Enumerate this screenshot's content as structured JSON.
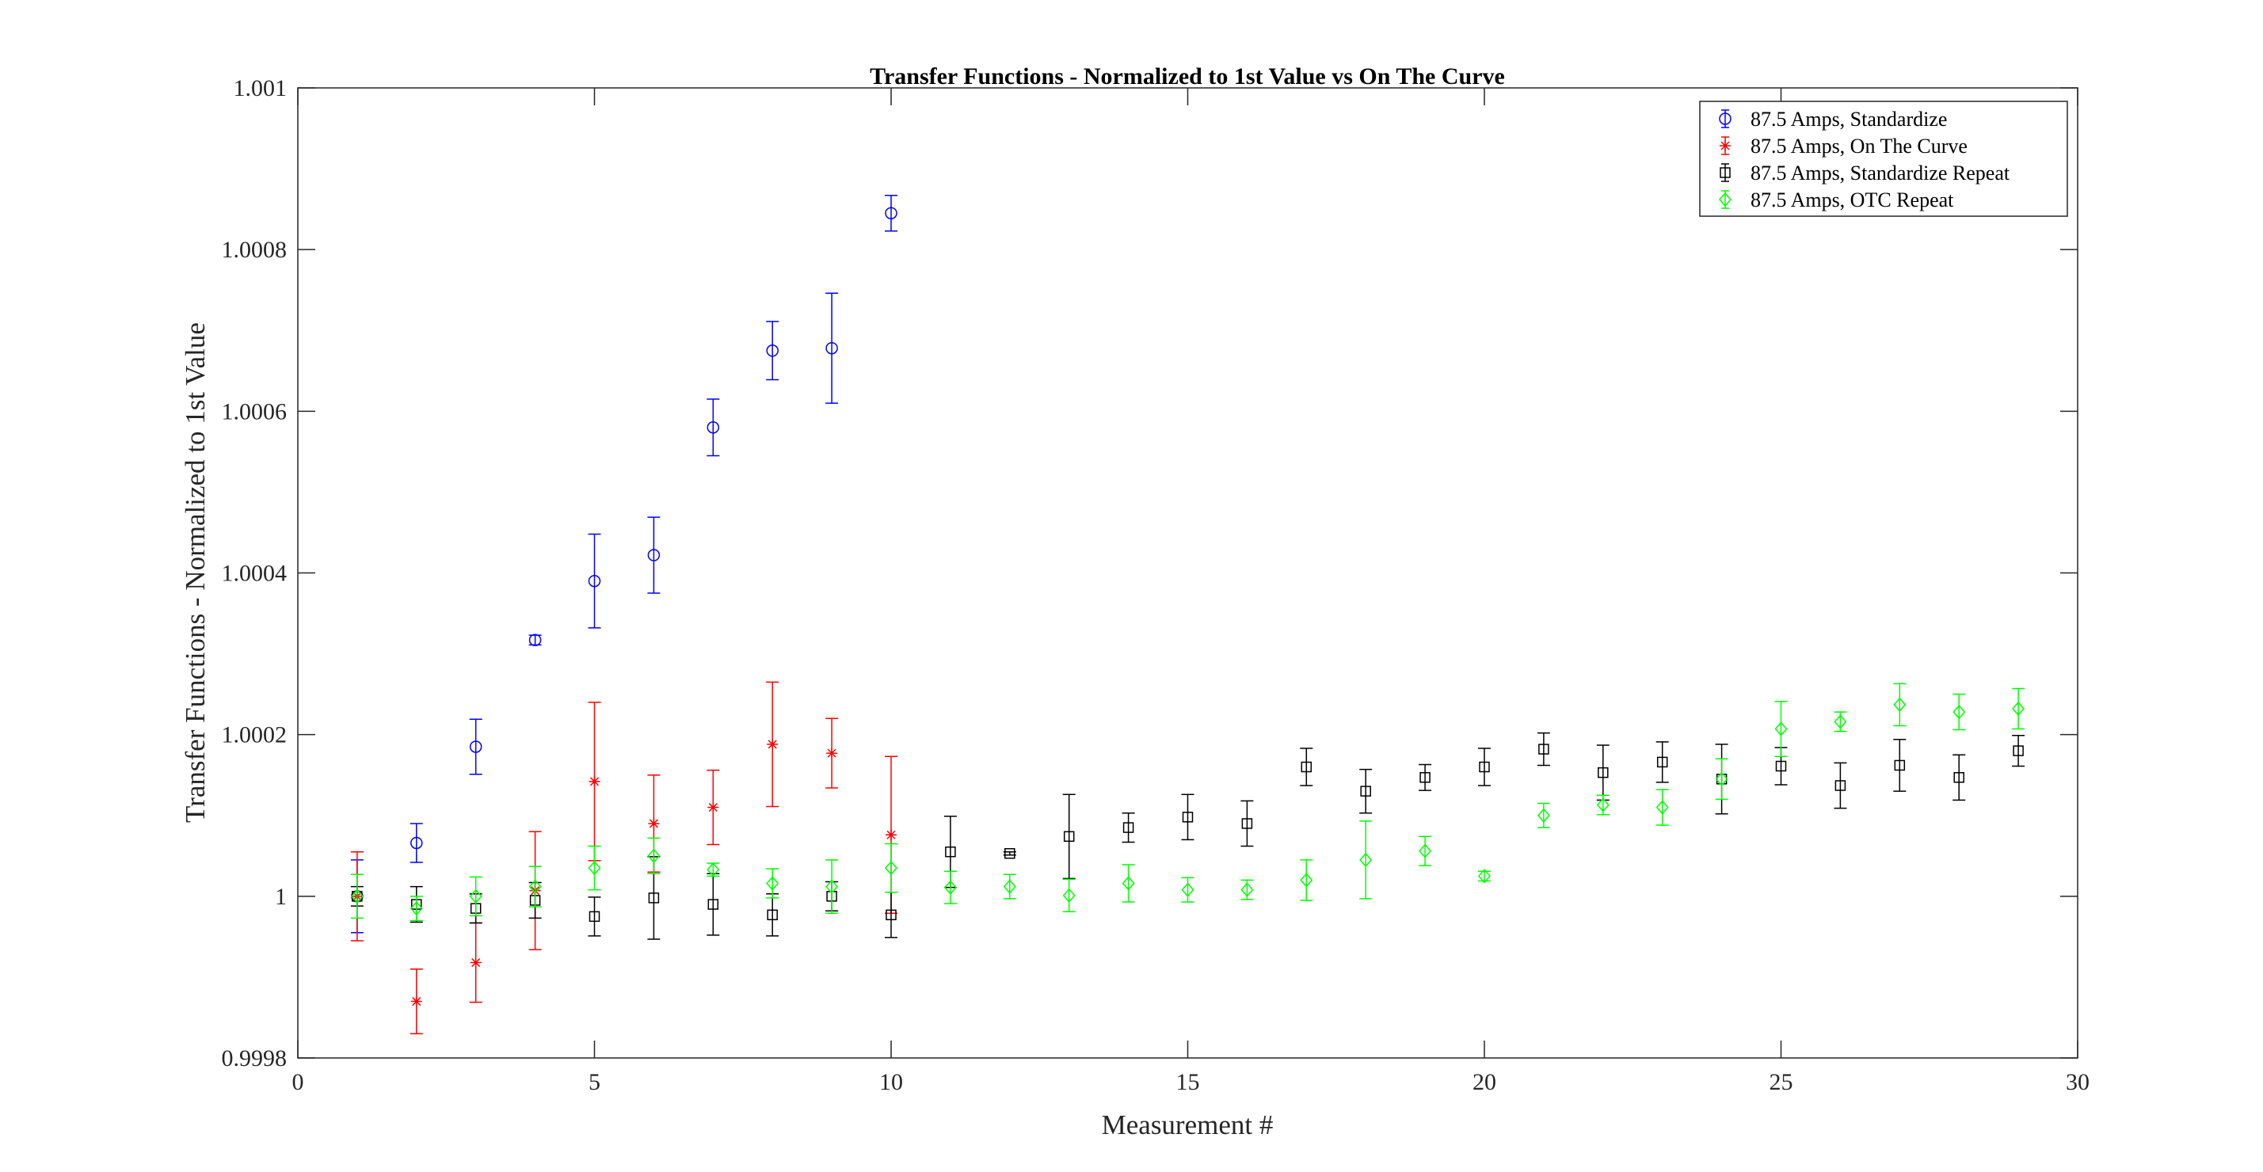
{
  "chart_data": {
    "type": "scatter",
    "title": "Transfer Functions - Normalized to 1st Value vs On The Curve",
    "xlabel": "Measurement #",
    "ylabel": "Transfer Functions - Normalized to 1st Value",
    "xlim": [
      0,
      30
    ],
    "ylim": [
      0.9998,
      1.001
    ],
    "xticks": [
      0,
      5,
      10,
      15,
      20,
      25,
      30
    ],
    "xtick_labels": [
      "0",
      "5",
      "10",
      "15",
      "20",
      "25",
      "30"
    ],
    "yticks": [
      0.9998,
      1.0,
      1.0002,
      1.0004,
      1.0006,
      1.0008,
      1.001
    ],
    "ytick_labels": [
      "0.9998",
      "1",
      "1.0002",
      "1.0004",
      "1.0006",
      "1.0008",
      "1.001"
    ],
    "grid": false,
    "legend_position": "top-right",
    "series": [
      {
        "name": "87.5 Amps, Standardize",
        "color": "#0000ff",
        "marker": "circle",
        "x": [
          1,
          2,
          3,
          4,
          5,
          6,
          7,
          8,
          9,
          10
        ],
        "y": [
          1.0,
          1.000066,
          1.000185,
          1.000317,
          1.00039,
          1.000422,
          1.00058,
          1.000675,
          1.000678,
          1.000845
        ],
        "err": [
          4.5e-05,
          2.4e-05,
          3.4e-05,
          6e-06,
          5.8e-05,
          4.7e-05,
          3.5e-05,
          3.6e-05,
          6.8e-05,
          2.2e-05
        ]
      },
      {
        "name": "87.5 Amps, On The Curve",
        "color": "#ff0000",
        "marker": "asterisk",
        "x": [
          1,
          2,
          3,
          4,
          5,
          6,
          7,
          8,
          9,
          10
        ],
        "y": [
          1.0,
          0.99987,
          0.999918,
          1.000007,
          1.000142,
          1.00009,
          1.00011,
          1.000188,
          1.000177,
          1.000076
        ],
        "err": [
          5.5e-05,
          4e-05,
          4.9e-05,
          7.3e-05,
          9.8e-05,
          6e-05,
          4.6e-05,
          7.7e-05,
          4.3e-05,
          9.7e-05
        ]
      },
      {
        "name": "87.5 Amps, Standardize Repeat",
        "color": "#000000",
        "marker": "square",
        "x": [
          1,
          2,
          3,
          4,
          5,
          6,
          7,
          8,
          9,
          10,
          11,
          12,
          13,
          14,
          15,
          16,
          17,
          18,
          19,
          20,
          21,
          22,
          23,
          24,
          25,
          26,
          27,
          28,
          29
        ],
        "y": [
          1.0,
          0.99999,
          0.999985,
          0.999995,
          0.999975,
          0.999998,
          0.99999,
          0.999977,
          1.0,
          0.999977,
          1.000055,
          1.000053,
          1.000074,
          1.000085,
          1.000098,
          1.00009,
          1.00016,
          1.00013,
          1.000147,
          1.00016,
          1.000182,
          1.000153,
          1.000166,
          1.000145,
          1.000161,
          1.000137,
          1.000162,
          1.000147,
          1.00018
        ],
        "err": [
          1.2e-05,
          2.2e-05,
          1.8e-05,
          2.2e-05,
          2.4e-05,
          5.1e-05,
          3.8e-05,
          2.6e-05,
          1.8e-05,
          2.8e-05,
          4.4e-05,
          2e-06,
          5.2e-05,
          1.8e-05,
          2.8e-05,
          2.8e-05,
          2.3e-05,
          2.7e-05,
          1.6e-05,
          2.3e-05,
          2e-05,
          3.4e-05,
          2.5e-05,
          4.3e-05,
          2.3e-05,
          2.8e-05,
          3.2e-05,
          2.8e-05,
          1.9e-05
        ]
      },
      {
        "name": "87.5 Amps, OTC Repeat",
        "color": "#00ff00",
        "marker": "diamond",
        "x": [
          1,
          2,
          3,
          4,
          5,
          6,
          7,
          8,
          9,
          10,
          11,
          12,
          13,
          14,
          15,
          16,
          17,
          18,
          19,
          20,
          21,
          22,
          23,
          24,
          25,
          26,
          27,
          28,
          29
        ],
        "y": [
          1.0,
          0.999985,
          1.0,
          1.000012,
          1.000035,
          1.00005,
          1.000033,
          1.000016,
          1.000012,
          1.000035,
          1.000011,
          1.000012,
          1.000001,
          1.000016,
          1.000008,
          1.000008,
          1.00002,
          1.000045,
          1.000056,
          1.000025,
          1.0001,
          1.000113,
          1.00011,
          1.000145,
          1.000207,
          1.000216,
          1.000237,
          1.000228,
          1.000232
        ],
        "err": [
          2.7e-05,
          1.5e-05,
          2.4e-05,
          2.5e-05,
          2.7e-05,
          2.2e-05,
          8e-06,
          1.8e-05,
          3.3e-05,
          3e-05,
          2e-05,
          1.5e-05,
          2e-05,
          2.3e-05,
          1.5e-05,
          1.2e-05,
          2.5e-05,
          4.8e-05,
          1.8e-05,
          6e-06,
          1.5e-05,
          1.2e-05,
          2.2e-05,
          2.5e-05,
          3.4e-05,
          1.2e-05,
          2.6e-05,
          2.2e-05,
          2.5e-05
        ]
      }
    ]
  }
}
